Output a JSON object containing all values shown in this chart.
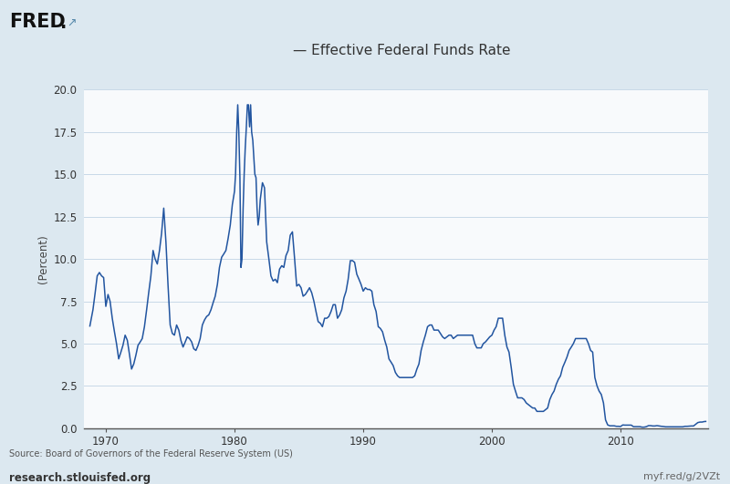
{
  "title": "— Effective Federal Funds Rate",
  "ylabel": "(Percent)",
  "source_text": "Source: Board of Governors of the Federal Reserve System (US)",
  "left_footer": "research.stlouisfed.org",
  "right_footer": "myf.red/g/2VZt",
  "line_color": "#2255a0",
  "bg_outer": "#dce8f0",
  "bg_plot": "#f8fafc",
  "grid_color": "#c8d8e8",
  "ylim": [
    0.0,
    20.0
  ],
  "yticks": [
    0.0,
    2.5,
    5.0,
    7.5,
    10.0,
    12.5,
    15.0,
    17.5,
    20.0
  ],
  "xlim_start": 1968.3,
  "xlim_end": 2016.8,
  "xticks": [
    1970,
    1980,
    1990,
    2000,
    2010
  ],
  "data": [
    [
      1968.75,
      6.0
    ],
    [
      1969.0,
      7.0
    ],
    [
      1969.17,
      8.0
    ],
    [
      1969.33,
      9.0
    ],
    [
      1969.5,
      9.2
    ],
    [
      1969.67,
      9.0
    ],
    [
      1969.83,
      8.9
    ],
    [
      1970.0,
      7.2
    ],
    [
      1970.17,
      7.9
    ],
    [
      1970.33,
      7.5
    ],
    [
      1970.5,
      6.5
    ],
    [
      1970.67,
      5.7
    ],
    [
      1970.83,
      5.0
    ],
    [
      1971.0,
      4.1
    ],
    [
      1971.17,
      4.5
    ],
    [
      1971.33,
      4.9
    ],
    [
      1971.5,
      5.5
    ],
    [
      1971.67,
      5.2
    ],
    [
      1971.83,
      4.4
    ],
    [
      1972.0,
      3.5
    ],
    [
      1972.17,
      3.8
    ],
    [
      1972.33,
      4.3
    ],
    [
      1972.5,
      4.9
    ],
    [
      1972.67,
      5.1
    ],
    [
      1972.83,
      5.3
    ],
    [
      1973.0,
      6.0
    ],
    [
      1973.17,
      7.0
    ],
    [
      1973.33,
      8.0
    ],
    [
      1973.5,
      9.0
    ],
    [
      1973.67,
      10.5
    ],
    [
      1973.83,
      10.0
    ],
    [
      1974.0,
      9.7
    ],
    [
      1974.17,
      10.5
    ],
    [
      1974.33,
      11.5
    ],
    [
      1974.5,
      13.0
    ],
    [
      1974.67,
      11.0
    ],
    [
      1974.83,
      8.5
    ],
    [
      1975.0,
      6.1
    ],
    [
      1975.17,
      5.6
    ],
    [
      1975.33,
      5.5
    ],
    [
      1975.5,
      6.1
    ],
    [
      1975.67,
      5.8
    ],
    [
      1975.83,
      5.2
    ],
    [
      1976.0,
      4.8
    ],
    [
      1976.17,
      5.1
    ],
    [
      1976.33,
      5.4
    ],
    [
      1976.5,
      5.3
    ],
    [
      1976.67,
      5.1
    ],
    [
      1976.83,
      4.7
    ],
    [
      1977.0,
      4.6
    ],
    [
      1977.17,
      4.9
    ],
    [
      1977.33,
      5.3
    ],
    [
      1977.5,
      6.1
    ],
    [
      1977.67,
      6.4
    ],
    [
      1977.83,
      6.6
    ],
    [
      1978.0,
      6.7
    ],
    [
      1978.17,
      7.0
    ],
    [
      1978.33,
      7.4
    ],
    [
      1978.5,
      7.8
    ],
    [
      1978.67,
      8.5
    ],
    [
      1978.83,
      9.5
    ],
    [
      1979.0,
      10.1
    ],
    [
      1979.17,
      10.3
    ],
    [
      1979.33,
      10.5
    ],
    [
      1979.5,
      11.2
    ],
    [
      1979.67,
      12.0
    ],
    [
      1979.83,
      13.2
    ],
    [
      1980.0,
      14.0
    ],
    [
      1980.08,
      15.0
    ],
    [
      1980.17,
      17.5
    ],
    [
      1980.25,
      19.1
    ],
    [
      1980.33,
      17.6
    ],
    [
      1980.42,
      14.8
    ],
    [
      1980.5,
      9.5
    ],
    [
      1980.58,
      10.0
    ],
    [
      1980.67,
      13.0
    ],
    [
      1980.75,
      15.0
    ],
    [
      1980.83,
      16.5
    ],
    [
      1980.92,
      17.8
    ],
    [
      1981.0,
      19.1
    ],
    [
      1981.08,
      19.1
    ],
    [
      1981.17,
      17.8
    ],
    [
      1981.25,
      19.1
    ],
    [
      1981.33,
      17.5
    ],
    [
      1981.42,
      17.0
    ],
    [
      1981.5,
      16.0
    ],
    [
      1981.58,
      15.0
    ],
    [
      1981.67,
      14.8
    ],
    [
      1981.75,
      13.0
    ],
    [
      1981.83,
      12.0
    ],
    [
      1981.92,
      12.5
    ],
    [
      1982.0,
      13.5
    ],
    [
      1982.17,
      14.5
    ],
    [
      1982.33,
      14.2
    ],
    [
      1982.5,
      11.0
    ],
    [
      1982.67,
      10.0
    ],
    [
      1982.83,
      9.0
    ],
    [
      1983.0,
      8.7
    ],
    [
      1983.17,
      8.8
    ],
    [
      1983.33,
      8.6
    ],
    [
      1983.5,
      9.4
    ],
    [
      1983.67,
      9.6
    ],
    [
      1983.83,
      9.5
    ],
    [
      1984.0,
      10.2
    ],
    [
      1984.17,
      10.5
    ],
    [
      1984.33,
      11.4
    ],
    [
      1984.5,
      11.6
    ],
    [
      1984.67,
      10.0
    ],
    [
      1984.83,
      8.4
    ],
    [
      1985.0,
      8.5
    ],
    [
      1985.17,
      8.3
    ],
    [
      1985.33,
      7.8
    ],
    [
      1985.5,
      7.9
    ],
    [
      1985.67,
      8.1
    ],
    [
      1985.83,
      8.3
    ],
    [
      1986.0,
      8.0
    ],
    [
      1986.17,
      7.5
    ],
    [
      1986.33,
      6.9
    ],
    [
      1986.5,
      6.3
    ],
    [
      1986.67,
      6.2
    ],
    [
      1986.83,
      6.0
    ],
    [
      1987.0,
      6.5
    ],
    [
      1987.17,
      6.5
    ],
    [
      1987.33,
      6.6
    ],
    [
      1987.5,
      6.9
    ],
    [
      1987.67,
      7.3
    ],
    [
      1987.83,
      7.3
    ],
    [
      1988.0,
      6.5
    ],
    [
      1988.17,
      6.7
    ],
    [
      1988.33,
      7.0
    ],
    [
      1988.5,
      7.7
    ],
    [
      1988.67,
      8.1
    ],
    [
      1988.83,
      8.8
    ],
    [
      1989.0,
      9.9
    ],
    [
      1989.17,
      9.9
    ],
    [
      1989.33,
      9.8
    ],
    [
      1989.5,
      9.1
    ],
    [
      1989.67,
      8.8
    ],
    [
      1989.83,
      8.5
    ],
    [
      1990.0,
      8.1
    ],
    [
      1990.17,
      8.3
    ],
    [
      1990.33,
      8.2
    ],
    [
      1990.5,
      8.2
    ],
    [
      1990.67,
      8.1
    ],
    [
      1990.83,
      7.3
    ],
    [
      1991.0,
      6.9
    ],
    [
      1991.17,
      6.0
    ],
    [
      1991.33,
      5.9
    ],
    [
      1991.5,
      5.7
    ],
    [
      1991.67,
      5.2
    ],
    [
      1991.83,
      4.8
    ],
    [
      1992.0,
      4.1
    ],
    [
      1992.17,
      3.9
    ],
    [
      1992.33,
      3.7
    ],
    [
      1992.5,
      3.3
    ],
    [
      1992.67,
      3.1
    ],
    [
      1992.83,
      3.0
    ],
    [
      1993.0,
      3.0
    ],
    [
      1993.17,
      3.0
    ],
    [
      1993.33,
      3.0
    ],
    [
      1993.5,
      3.0
    ],
    [
      1993.67,
      3.0
    ],
    [
      1993.83,
      3.0
    ],
    [
      1994.0,
      3.1
    ],
    [
      1994.17,
      3.5
    ],
    [
      1994.33,
      3.8
    ],
    [
      1994.5,
      4.6
    ],
    [
      1994.67,
      5.1
    ],
    [
      1994.83,
      5.5
    ],
    [
      1995.0,
      6.0
    ],
    [
      1995.17,
      6.1
    ],
    [
      1995.33,
      6.1
    ],
    [
      1995.5,
      5.8
    ],
    [
      1995.67,
      5.8
    ],
    [
      1995.83,
      5.8
    ],
    [
      1996.0,
      5.6
    ],
    [
      1996.17,
      5.4
    ],
    [
      1996.33,
      5.3
    ],
    [
      1996.5,
      5.4
    ],
    [
      1996.67,
      5.5
    ],
    [
      1996.83,
      5.5
    ],
    [
      1997.0,
      5.3
    ],
    [
      1997.17,
      5.4
    ],
    [
      1997.33,
      5.5
    ],
    [
      1997.5,
      5.5
    ],
    [
      1997.67,
      5.5
    ],
    [
      1997.83,
      5.5
    ],
    [
      1998.0,
      5.5
    ],
    [
      1998.17,
      5.5
    ],
    [
      1998.33,
      5.5
    ],
    [
      1998.5,
      5.5
    ],
    [
      1998.67,
      5.0
    ],
    [
      1998.83,
      4.75
    ],
    [
      1999.0,
      4.75
    ],
    [
      1999.17,
      4.75
    ],
    [
      1999.33,
      5.0
    ],
    [
      1999.5,
      5.1
    ],
    [
      1999.67,
      5.25
    ],
    [
      1999.83,
      5.4
    ],
    [
      2000.0,
      5.5
    ],
    [
      2000.17,
      5.8
    ],
    [
      2000.33,
      6.0
    ],
    [
      2000.5,
      6.5
    ],
    [
      2000.67,
      6.5
    ],
    [
      2000.83,
      6.5
    ],
    [
      2001.0,
      5.5
    ],
    [
      2001.17,
      4.8
    ],
    [
      2001.33,
      4.5
    ],
    [
      2001.5,
      3.6
    ],
    [
      2001.67,
      2.6
    ],
    [
      2001.83,
      2.2
    ],
    [
      2002.0,
      1.8
    ],
    [
      2002.17,
      1.8
    ],
    [
      2002.33,
      1.8
    ],
    [
      2002.5,
      1.7
    ],
    [
      2002.67,
      1.5
    ],
    [
      2002.83,
      1.4
    ],
    [
      2003.0,
      1.3
    ],
    [
      2003.17,
      1.2
    ],
    [
      2003.33,
      1.2
    ],
    [
      2003.5,
      1.0
    ],
    [
      2003.67,
      1.0
    ],
    [
      2003.83,
      1.0
    ],
    [
      2004.0,
      1.0
    ],
    [
      2004.17,
      1.1
    ],
    [
      2004.33,
      1.2
    ],
    [
      2004.5,
      1.7
    ],
    [
      2004.67,
      2.0
    ],
    [
      2004.83,
      2.2
    ],
    [
      2005.0,
      2.6
    ],
    [
      2005.17,
      2.9
    ],
    [
      2005.33,
      3.1
    ],
    [
      2005.5,
      3.6
    ],
    [
      2005.67,
      3.9
    ],
    [
      2005.83,
      4.2
    ],
    [
      2006.0,
      4.6
    ],
    [
      2006.17,
      4.8
    ],
    [
      2006.33,
      5.0
    ],
    [
      2006.5,
      5.3
    ],
    [
      2006.67,
      5.3
    ],
    [
      2006.83,
      5.3
    ],
    [
      2007.0,
      5.3
    ],
    [
      2007.17,
      5.3
    ],
    [
      2007.33,
      5.3
    ],
    [
      2007.5,
      5.0
    ],
    [
      2007.67,
      4.6
    ],
    [
      2007.83,
      4.5
    ],
    [
      2008.0,
      3.0
    ],
    [
      2008.17,
      2.5
    ],
    [
      2008.33,
      2.2
    ],
    [
      2008.5,
      2.0
    ],
    [
      2008.67,
      1.5
    ],
    [
      2008.83,
      0.5
    ],
    [
      2009.0,
      0.2
    ],
    [
      2009.17,
      0.15
    ],
    [
      2009.33,
      0.15
    ],
    [
      2009.5,
      0.15
    ],
    [
      2009.67,
      0.12
    ],
    [
      2009.83,
      0.12
    ],
    [
      2010.0,
      0.11
    ],
    [
      2010.17,
      0.2
    ],
    [
      2010.33,
      0.19
    ],
    [
      2010.5,
      0.19
    ],
    [
      2010.67,
      0.19
    ],
    [
      2010.83,
      0.19
    ],
    [
      2011.0,
      0.1
    ],
    [
      2011.17,
      0.1
    ],
    [
      2011.33,
      0.1
    ],
    [
      2011.5,
      0.1
    ],
    [
      2011.67,
      0.07
    ],
    [
      2011.83,
      0.07
    ],
    [
      2012.0,
      0.1
    ],
    [
      2012.17,
      0.16
    ],
    [
      2012.33,
      0.16
    ],
    [
      2012.5,
      0.14
    ],
    [
      2012.67,
      0.14
    ],
    [
      2012.83,
      0.16
    ],
    [
      2013.0,
      0.14
    ],
    [
      2013.17,
      0.12
    ],
    [
      2013.33,
      0.11
    ],
    [
      2013.5,
      0.09
    ],
    [
      2013.67,
      0.09
    ],
    [
      2013.83,
      0.09
    ],
    [
      2014.0,
      0.09
    ],
    [
      2014.17,
      0.09
    ],
    [
      2014.33,
      0.09
    ],
    [
      2014.5,
      0.09
    ],
    [
      2014.67,
      0.09
    ],
    [
      2014.83,
      0.09
    ],
    [
      2015.0,
      0.12
    ],
    [
      2015.17,
      0.12
    ],
    [
      2015.33,
      0.13
    ],
    [
      2015.5,
      0.14
    ],
    [
      2015.67,
      0.14
    ],
    [
      2015.83,
      0.24
    ],
    [
      2016.0,
      0.34
    ],
    [
      2016.17,
      0.37
    ],
    [
      2016.33,
      0.37
    ],
    [
      2016.5,
      0.4
    ],
    [
      2016.67,
      0.41
    ]
  ]
}
